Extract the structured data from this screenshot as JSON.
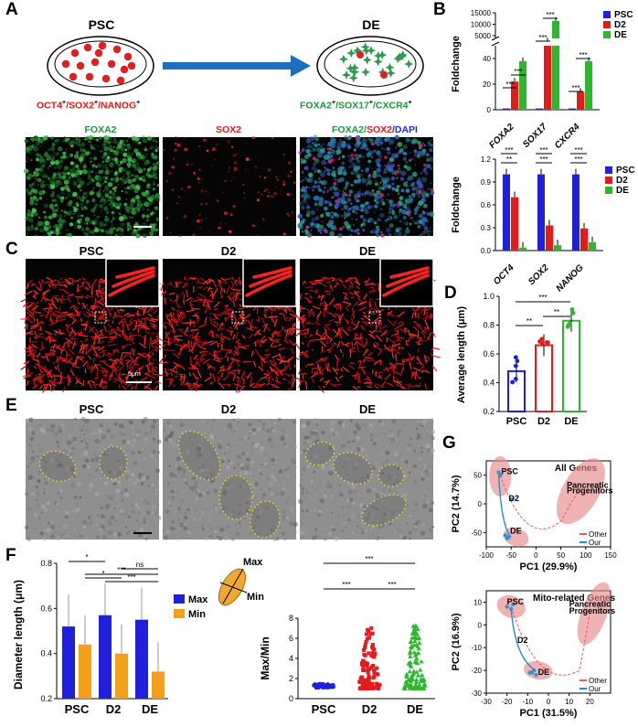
{
  "panel_letters": {
    "A": "A",
    "B": "B",
    "C": "C",
    "D": "D",
    "E": "E",
    "F": "F",
    "G": "G"
  },
  "panelA": {
    "psc_title": "PSC",
    "de_title": "DE",
    "psc_markers": [
      "OCT4",
      "+",
      "/SOX2",
      "+",
      "/NANOG",
      "+"
    ],
    "de_markers": [
      "FOXA2",
      "+",
      "/SOX17",
      "+",
      "/CXCR4",
      "+"
    ],
    "img_labels": {
      "foxa2": "FOXA2",
      "sox2": "SOX2",
      "merge_a": "FOXA2/",
      "merge_b": "SOX2",
      "merge_c": "/DAPI"
    },
    "colors": {
      "green": "#1a9a3a",
      "red": "#e01b1b",
      "blue": "#2030c0"
    }
  },
  "panelC": {
    "labels": [
      "PSC",
      "D2",
      "DE"
    ],
    "scale": "5μm"
  },
  "panelE": {
    "labels": [
      "PSC",
      "D2",
      "DE"
    ]
  },
  "legend_items": [
    "PSC",
    "D2",
    "DE"
  ],
  "series_colors": {
    "PSC": "#1f1fdc",
    "D2": "#e41a1c",
    "DE": "#2cb82c"
  },
  "chart_data": [
    {
      "id": "B_top",
      "type": "bar",
      "ylabel": "Foldchange",
      "broken_axis": true,
      "categories": [
        "FOXA2",
        "SOX17",
        "CXCR4"
      ],
      "yticks_lower": [
        "0",
        "20",
        "40"
      ],
      "yticks_upper": [
        "5000",
        "10000",
        "15000"
      ],
      "series": [
        {
          "name": "PSC",
          "values": [
            1,
            1,
            1
          ]
        },
        {
          "name": "D2",
          "values": [
            22,
            2500,
            14
          ]
        },
        {
          "name": "DE",
          "values": [
            38,
            11500,
            38
          ]
        }
      ],
      "sig": [
        "***",
        "***",
        "***",
        "***",
        "***",
        "***"
      ]
    },
    {
      "id": "B_bottom",
      "type": "bar",
      "ylabel": "Foldchange",
      "categories": [
        "OCT4",
        "SOX2",
        "NANOG"
      ],
      "ylim": [
        0,
        1.2
      ],
      "yticks": [
        "0.0",
        "0.3",
        "0.6",
        "0.9",
        "1.2"
      ],
      "series": [
        {
          "name": "PSC",
          "values": [
            1.0,
            1.0,
            1.0
          ]
        },
        {
          "name": "D2",
          "values": [
            0.7,
            0.33,
            0.29
          ]
        },
        {
          "name": "DE",
          "values": [
            0.04,
            0.07,
            0.11
          ]
        }
      ],
      "sig": [
        "***",
        "**",
        "***",
        "***",
        "***",
        "***"
      ]
    },
    {
      "id": "D",
      "type": "bar",
      "ylabel": "Average length (μm)",
      "categories": [
        "PSC",
        "D2",
        "DE"
      ],
      "values": [
        0.48,
        0.66,
        0.83
      ],
      "ylim": [
        0.2,
        1.0
      ],
      "yticks": [
        "0.2",
        "0.4",
        "0.6",
        "0.8",
        "1.0"
      ],
      "sig": [
        "**",
        "**",
        "***"
      ]
    },
    {
      "id": "F_left",
      "type": "bar",
      "ylabel": "Diameter length (μm)",
      "categories": [
        "PSC",
        "D2",
        "DE"
      ],
      "ylim": [
        0.2,
        0.8
      ],
      "yticks": [
        "0.2",
        "0.4",
        "0.6",
        "0.8"
      ],
      "series": [
        {
          "name": "Max",
          "values": [
            0.52,
            0.57,
            0.55
          ]
        },
        {
          "name": "Min",
          "values": [
            0.44,
            0.4,
            0.32
          ]
        }
      ],
      "sig": [
        "*",
        "ns",
        "*",
        "***",
        "***"
      ]
    },
    {
      "id": "F_right",
      "type": "scatter",
      "ylabel": "Max/Min",
      "categories": [
        "PSC",
        "D2",
        "DE"
      ],
      "ylim": [
        0,
        8
      ],
      "yticks": [
        "0",
        "2",
        "4",
        "6",
        "8"
      ],
      "max_values": [
        1.5,
        7.1,
        7.3
      ],
      "sig": [
        "***",
        "***",
        "***"
      ]
    },
    {
      "id": "G_top",
      "type": "scatter",
      "title": "All Genes",
      "xlabel": "PC1 (29.9%)",
      "ylabel": "PC2 (14.7%)",
      "xlim": [
        -100,
        150
      ],
      "ylim": [
        -75,
        75
      ],
      "xticks": [
        "-100",
        "-50",
        "0",
        "50",
        "100",
        "150"
      ],
      "yticks": [
        "-50",
        "0",
        "50"
      ],
      "groups": [
        "PSC",
        "D2",
        "DE",
        "Pancreatic",
        "Progenitors"
      ],
      "legend": [
        "Other",
        "Our"
      ]
    },
    {
      "id": "G_bottom",
      "type": "scatter",
      "title": "Mito-related Genes",
      "xlabel": "PC1 (31.5%)",
      "ylabel": "PC2 (16.9%)",
      "xlim": [
        -30,
        30
      ],
      "ylim": [
        -30,
        15
      ],
      "xticks": [
        "-30",
        "-20",
        "-10",
        "0",
        "10",
        "20"
      ],
      "yticks": [
        "10",
        "0",
        "-10",
        "-20",
        "-30"
      ],
      "groups": [
        "PSC",
        "D2",
        "DE",
        "Pancreatic",
        "Progenitors"
      ],
      "legend": [
        "Other",
        "Our"
      ]
    }
  ],
  "panelF": {
    "legend": [
      "Max",
      "Min"
    ],
    "ellipse_labels": [
      "Max",
      "Min"
    ]
  }
}
